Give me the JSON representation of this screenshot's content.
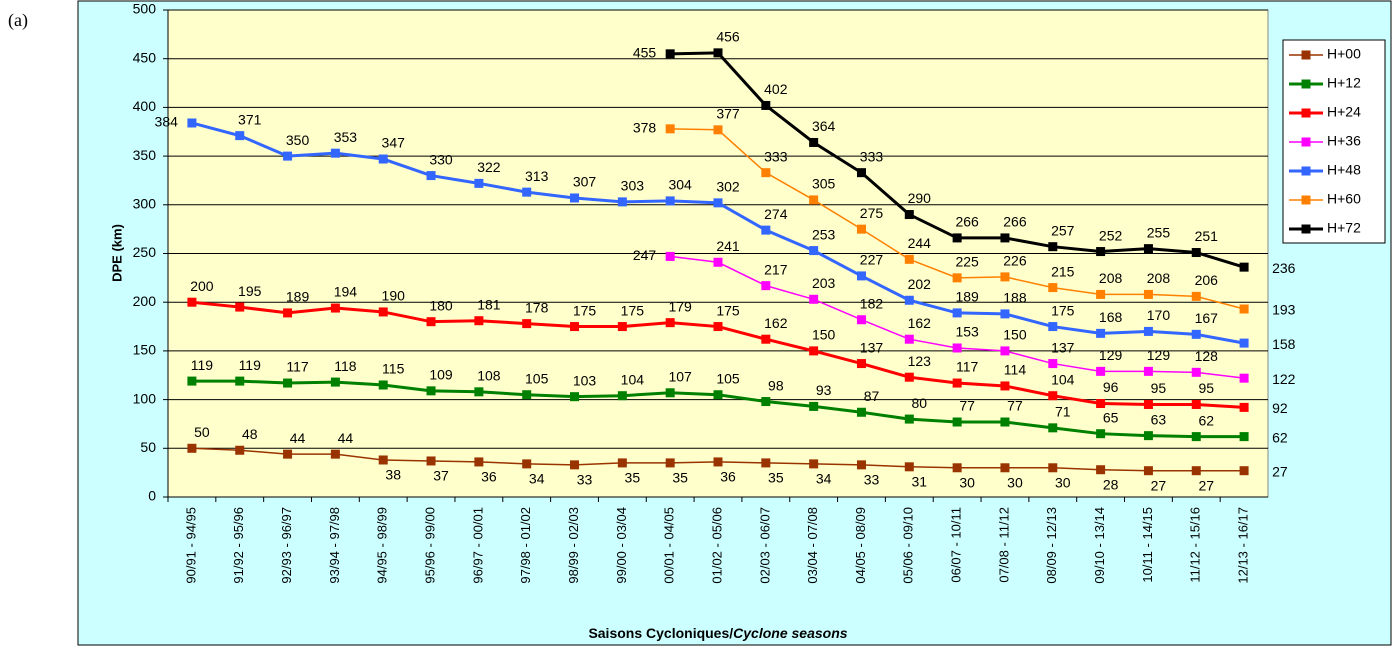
{
  "chart_data": {
    "type": "line",
    "title": "(a)",
    "y_label": "DPE (km)",
    "x_label": "Saisons Cycloniques/",
    "x_label_italic": "Cyclone  seasons",
    "categories": [
      "90/91 - 94/95",
      "91/92 - 95/96",
      "92/93 - 96/97",
      "93/94 - 97/98",
      "94/95 - 98/99",
      "95/96 - 99/00",
      "96/97 - 00/01",
      "97/98 - 01/02",
      "98/99 - 02/03",
      "99/00 - 03/04",
      "00/01 - 04/05",
      "01/02 - 05/06",
      "02/03 - 06/07",
      "03/04 - 07/08",
      "04/05 - 08/09",
      "05/06 - 09/10",
      "06/07 - 10/11",
      "07/08 - 11/12",
      "08/09 - 12/13",
      "09/10 - 13/14",
      "10/11 - 14/15",
      "11/12 - 15/16",
      "12/13 - 16/17"
    ],
    "series": [
      {
        "name": "H+00",
        "color": "#993300",
        "values": [
          50,
          48,
          44,
          44,
          38,
          37,
          36,
          34,
          33,
          35,
          35,
          36,
          35,
          34,
          33,
          31,
          30,
          30,
          30,
          28,
          27,
          27,
          27
        ]
      },
      {
        "name": "H+12",
        "color": "#008000",
        "values": [
          119,
          119,
          117,
          118,
          115,
          109,
          108,
          105,
          103,
          104,
          107,
          105,
          98,
          93,
          87,
          80,
          77,
          77,
          71,
          65,
          63,
          62,
          62
        ]
      },
      {
        "name": "H+24",
        "color": "#ff0000",
        "values": [
          200,
          195,
          189,
          194,
          190,
          180,
          181,
          178,
          175,
          175,
          179,
          175,
          162,
          150,
          137,
          123,
          117,
          114,
          104,
          96,
          95,
          95,
          92
        ]
      },
      {
        "name": "H+36",
        "color": "#ff00ff",
        "values": [
          null,
          null,
          null,
          null,
          null,
          null,
          null,
          null,
          null,
          null,
          247,
          241,
          217,
          203,
          182,
          162,
          153,
          150,
          137,
          129,
          129,
          128,
          122
        ]
      },
      {
        "name": "H+48",
        "color": "#3366ff",
        "values": [
          384,
          371,
          350,
          353,
          347,
          330,
          322,
          313,
          307,
          303,
          304,
          302,
          274,
          253,
          227,
          202,
          189,
          188,
          175,
          168,
          170,
          167,
          158
        ]
      },
      {
        "name": "H+60",
        "color": "#ff8000",
        "values": [
          null,
          null,
          null,
          null,
          null,
          null,
          null,
          null,
          null,
          null,
          378,
          377,
          333,
          305,
          275,
          244,
          225,
          226,
          215,
          208,
          208,
          206,
          193
        ]
      },
      {
        "name": "H+72",
        "color": "#000000",
        "values": [
          null,
          null,
          null,
          null,
          null,
          null,
          null,
          null,
          null,
          null,
          455,
          456,
          402,
          364,
          333,
          290,
          266,
          266,
          257,
          252,
          255,
          251,
          236
        ]
      }
    ],
    "ylim": [
      0,
      500
    ],
    "yticks": [
      0,
      50,
      100,
      150,
      200,
      250,
      300,
      350,
      400,
      450,
      500
    ],
    "grid": true,
    "legend": "right"
  }
}
